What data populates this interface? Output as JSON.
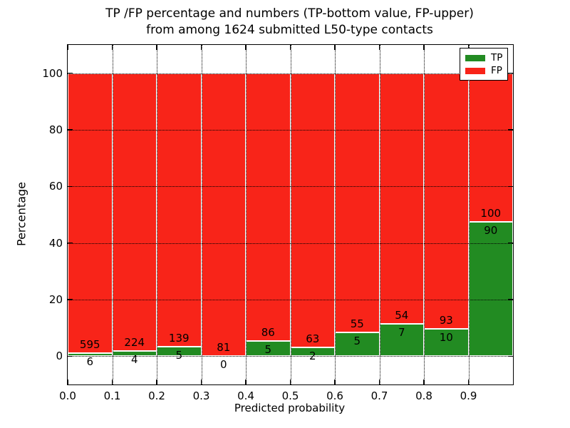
{
  "figure": {
    "title_line1": "TP /FP percentage and numbers (TP-bottom value, FP-upper)",
    "title_line2": "from among 1624 submitted L50-type contacts"
  },
  "axes": {
    "xlabel": "Predicted probability",
    "ylabel": "Percentage"
  },
  "legend": {
    "entries": [
      {
        "label": "TP",
        "color": "#228b22"
      },
      {
        "label": "FP",
        "color": "#f82419"
      }
    ]
  },
  "colors": {
    "tp_green": "#228b22",
    "fp_red": "#f82419",
    "background": "#ffffff",
    "text": "#000000",
    "grid": "#000000",
    "bar_edge": "#ffffff"
  },
  "chart_data": {
    "type": "bar",
    "stacked": true,
    "title": "TP /FP percentage and numbers (TP-bottom value, FP-upper) from among 1624 submitted L50-type contacts",
    "xlabel": "Predicted probability",
    "ylabel": "Percentage",
    "xlim": [
      0.0,
      1.0
    ],
    "ylim": [
      -10,
      110
    ],
    "x_tick_values": [
      0.0,
      0.1,
      0.2,
      0.3,
      0.4,
      0.5,
      0.6,
      0.7,
      0.8,
      0.9
    ],
    "x_tick_labels": [
      "0.0",
      "0.1",
      "0.2",
      "0.3",
      "0.4",
      "0.5",
      "0.6",
      "0.7",
      "0.8",
      "0.9"
    ],
    "y_tick_values": [
      0,
      20,
      40,
      60,
      80,
      100
    ],
    "y_tick_labels": [
      "0",
      "20",
      "40",
      "60",
      "80",
      "100"
    ],
    "grid": "dotted",
    "legend_position": "upper right",
    "total_contacts": 1624,
    "bins": [
      {
        "x_start": 0.0,
        "x_end": 0.1,
        "tp_count": 6,
        "fp_count": 595,
        "tp_pct": 1.0,
        "fp_pct": 99.0
      },
      {
        "x_start": 0.1,
        "x_end": 0.2,
        "tp_count": 4,
        "fp_count": 224,
        "tp_pct": 1.75,
        "fp_pct": 98.25
      },
      {
        "x_start": 0.2,
        "x_end": 0.3,
        "tp_count": 5,
        "fp_count": 139,
        "tp_pct": 3.47,
        "fp_pct": 96.53
      },
      {
        "x_start": 0.3,
        "x_end": 0.4,
        "tp_count": 0,
        "fp_count": 81,
        "tp_pct": 0.0,
        "fp_pct": 100.0
      },
      {
        "x_start": 0.4,
        "x_end": 0.5,
        "tp_count": 5,
        "fp_count": 86,
        "tp_pct": 5.49,
        "fp_pct": 94.51
      },
      {
        "x_start": 0.5,
        "x_end": 0.6,
        "tp_count": 2,
        "fp_count": 63,
        "tp_pct": 3.08,
        "fp_pct": 96.92
      },
      {
        "x_start": 0.6,
        "x_end": 0.7,
        "tp_count": 5,
        "fp_count": 55,
        "tp_pct": 8.33,
        "fp_pct": 91.67
      },
      {
        "x_start": 0.7,
        "x_end": 0.8,
        "tp_count": 7,
        "fp_count": 54,
        "tp_pct": 11.48,
        "fp_pct": 88.52
      },
      {
        "x_start": 0.8,
        "x_end": 0.9,
        "tp_count": 10,
        "fp_count": 93,
        "tp_pct": 9.71,
        "fp_pct": 90.29
      },
      {
        "x_start": 0.9,
        "x_end": 1.0,
        "tp_count": 90,
        "fp_count": 100,
        "tp_pct": 47.37,
        "fp_pct": 52.63
      }
    ],
    "series": [
      {
        "name": "TP",
        "color": "#228b22",
        "counts": [
          6,
          4,
          5,
          0,
          5,
          2,
          5,
          7,
          10,
          90
        ],
        "values_pct": [
          1.0,
          1.75,
          3.47,
          0.0,
          5.49,
          3.08,
          8.33,
          11.48,
          9.71,
          47.37
        ]
      },
      {
        "name": "FP",
        "color": "#f82419",
        "counts": [
          595,
          224,
          139,
          81,
          86,
          63,
          55,
          54,
          93,
          100
        ],
        "values_pct": [
          99.0,
          98.25,
          96.53,
          100.0,
          94.51,
          96.92,
          91.67,
          88.52,
          90.29,
          52.63
        ]
      }
    ]
  }
}
